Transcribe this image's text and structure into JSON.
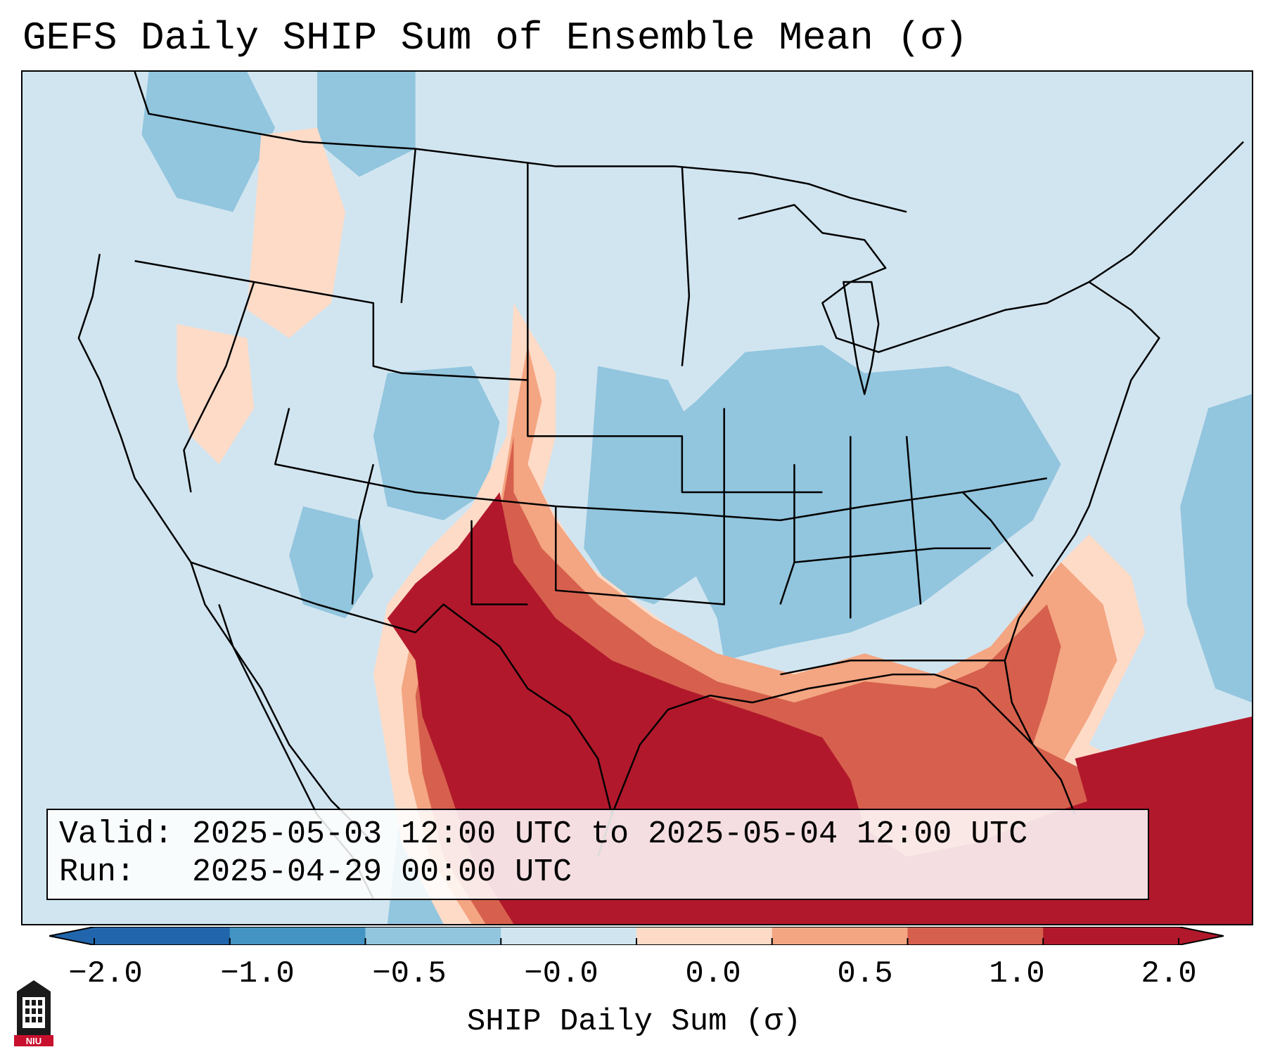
{
  "title": "GEFS Daily SHIP Sum of Ensemble Mean (σ)",
  "info": {
    "valid_line": "Valid: 2025-05-03 12:00 UTC to 2025-05-04 12:00 UTC",
    "run_line": "Run:   2025-04-29 00:00 UTC"
  },
  "colorbar": {
    "label": "SHIP Daily Sum (σ)",
    "ticks": [
      "−2.0",
      "−1.0",
      "−0.5",
      "−0.0",
      "0.0",
      "0.5",
      "1.0",
      "2.0"
    ],
    "colors": [
      "#2166ac",
      "#4393c3",
      "#92c5de",
      "#d1e5f0",
      "#fddbc7",
      "#f4a582",
      "#d6604d",
      "#b2182b"
    ],
    "extend": "both"
  },
  "logo": {
    "text": "NIU",
    "icon": "university-tower-icon"
  },
  "map": {
    "region": "Continental United States",
    "background_value_color": "#d1e5f0"
  }
}
